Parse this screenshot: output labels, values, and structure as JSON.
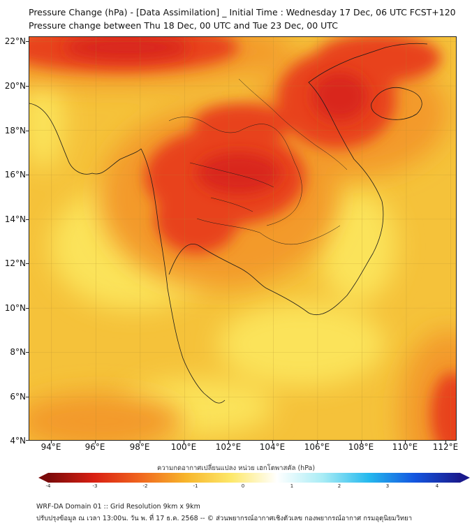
{
  "header": {
    "title_line1": "Pressure Change (hPa) - [Data Assimilation] _ Initial Time : Wednesday 17 Dec, 06 UTC FCST+120",
    "title_line2": "Pressure change between Thu 18 Dec, 00 UTC and Tue 23 Dec, 00 UTC"
  },
  "map": {
    "lat_labels": [
      "22°N",
      "20°N",
      "18°N",
      "16°N",
      "14°N",
      "12°N",
      "10°N",
      "8°N",
      "6°N",
      "4°N"
    ],
    "lon_labels": [
      "94°E",
      "96°E",
      "98°E",
      "100°E",
      "102°E",
      "104°E",
      "106°E",
      "108°E",
      "110°E",
      "112°E"
    ],
    "lat_range": [
      4,
      22.2
    ],
    "lon_range": [
      93,
      112.3
    ],
    "colors": {
      "background": "#f5c23a",
      "light_yellow": "#fbe35a",
      "orange": "#f39a2a",
      "red": "#e8431c",
      "dark_red": "#d9261a",
      "coastline": "#1a1a1a"
    }
  },
  "colorbar": {
    "caption": "ความกดอากาศเปลี่ยนแปลง หน่วย เฮกโตพาสคัล (hPa)",
    "tick_labels": [
      "-4",
      "-3",
      "-2",
      "-1",
      "0",
      "1",
      "2",
      "3",
      "4"
    ],
    "range": [
      -4,
      4
    ],
    "colors": [
      "#7a0a0a",
      "#d91f12",
      "#f0651e",
      "#f7b52b",
      "#fde86a",
      "#ffffff",
      "#a8ecf5",
      "#25b9ee",
      "#1456e0",
      "#1a1a8c"
    ]
  },
  "footer": {
    "line1": "WRF-DA Domain 01 :: Grid Resolution 9km x 9km",
    "line2": "ปรับปรุงข้อมูล ณ เวลา 13:00น. วัน พ. ที่ 17 ธ.ค. 2568 -- © ส่วนพยากรณ์อากาศเชิงตัวเลข กองพยากรณ์อากาศ กรมอุตุนิยมวิทยา"
  }
}
